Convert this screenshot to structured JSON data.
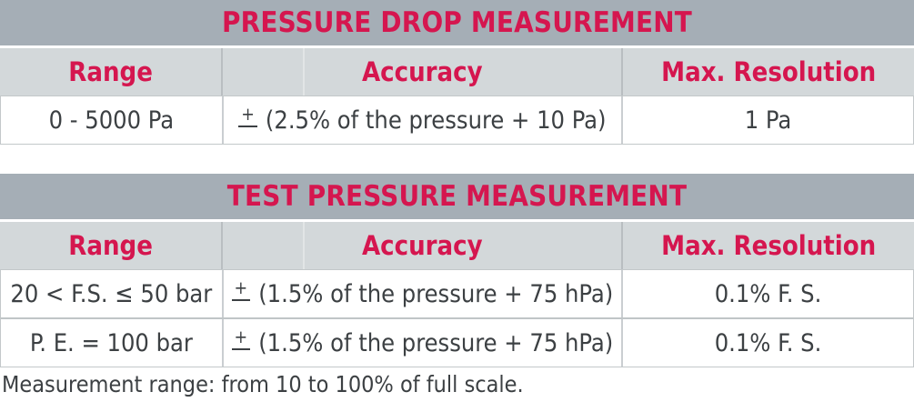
{
  "colors": {
    "accent": "#d5164f",
    "title_bar_bg": "#a5aeb6",
    "header_row_bg": "#d3d8da",
    "body_text": "#3c4043"
  },
  "tables": [
    {
      "title": "PRESSURE DROP MEASUREMENT",
      "columns": [
        "Range",
        "Accuracy",
        "Max. Resolution"
      ],
      "rows": [
        {
          "range": "0 - 5000 Pa",
          "accuracy_pm": "+",
          "accuracy": "(2.5% of the pressure + 10 Pa)",
          "resolution": "1 Pa"
        }
      ]
    },
    {
      "title": "TEST PRESSURE MEASUREMENT",
      "columns": [
        "Range",
        "Accuracy",
        "Max. Resolution"
      ],
      "rows": [
        {
          "range": "20 < F.S. ≤ 50 bar",
          "accuracy_pm": "+",
          "accuracy": "(1.5% of the pressure + 75 hPa)",
          "resolution": "0.1% F. S."
        },
        {
          "range": "P. E. = 100 bar",
          "accuracy_pm": "+",
          "accuracy": "(1.5% of the pressure + 75 hPa)",
          "resolution": "0.1% F. S."
        }
      ]
    }
  ],
  "footnote": "Measurement range: from 10 to 100% of full scale."
}
